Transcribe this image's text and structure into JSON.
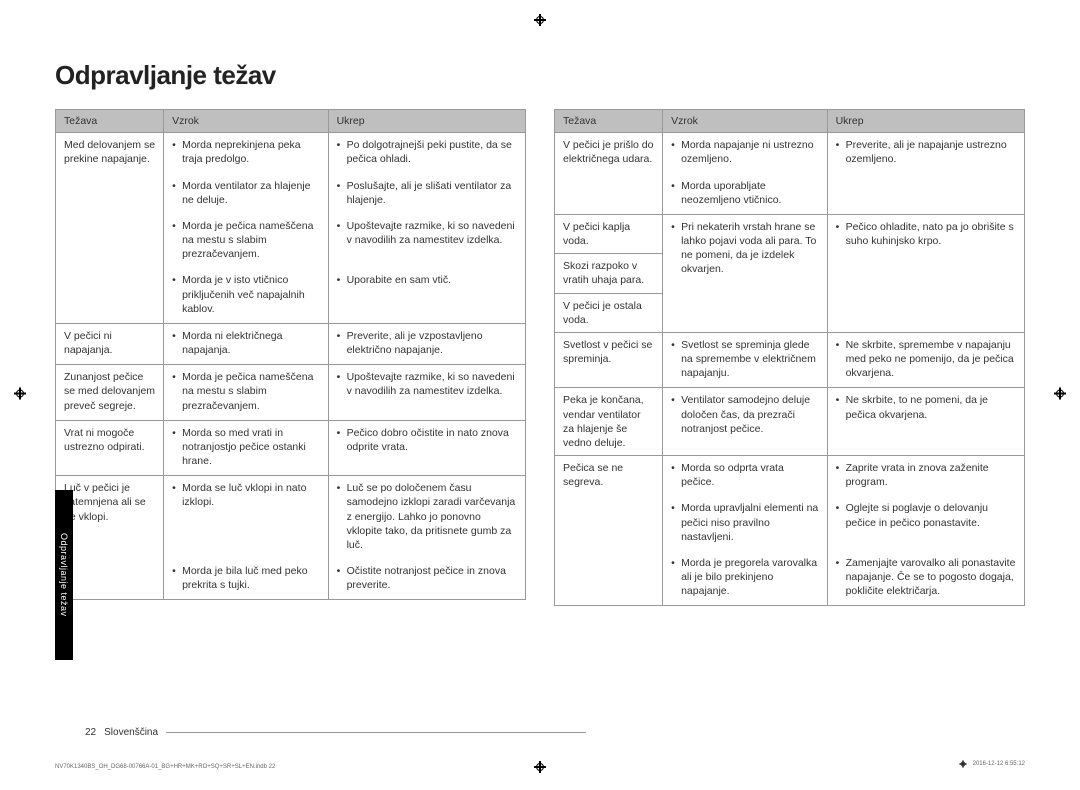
{
  "title": "Odpravljanje težav",
  "sideTab": "Odpravljanje težav",
  "headers": {
    "problem": "Težava",
    "cause": "Vzrok",
    "action": "Ukrep"
  },
  "footer": {
    "page": "22",
    "lang": "Slovenščina"
  },
  "tinyLeft": "NV70K1340BS_OH_DG68-00766A-01_BG+HR+MK+RO+SQ+SR+SL+EN.indb   22",
  "tinyRight": "2016-12-12    6:55:12",
  "left": [
    {
      "problem": "Med delovanjem se prekine napajanje.",
      "rows": [
        {
          "cause": "Morda neprekinjena peka traja predolgo.",
          "action": "Po dolgotrajnejši peki pustite, da se pečica ohladi."
        },
        {
          "cause": "Morda ventilator za hlajenje ne deluje.",
          "action": "Poslušajte, ali je slišati ventilator za hlajenje."
        },
        {
          "cause": "Morda je pečica nameščena na mestu s slabim prezračevanjem.",
          "action": "Upoštevajte razmike, ki so navedeni v navodilih za namestitev izdelka."
        },
        {
          "cause": "Morda je v isto vtičnico priključenih več napajalnih kablov.",
          "action": "Uporabite en sam vtič."
        }
      ]
    },
    {
      "problem": "V pečici ni napajanja.",
      "rows": [
        {
          "cause": "Morda ni električnega napajanja.",
          "action": "Preverite, ali je vzpostavljeno električno napajanje."
        }
      ]
    },
    {
      "problem": "Zunanjost pečice se med delovanjem preveč segreje.",
      "rows": [
        {
          "cause": "Morda je pečica nameščena na mestu s slabim prezračevanjem.",
          "action": "Upoštevajte razmike, ki so navedeni v navodilih za namestitev izdelka."
        }
      ]
    },
    {
      "problem": "Vrat ni mogoče ustrezno odpirati.",
      "rows": [
        {
          "cause": "Morda so med vrati in notranjostjo pečice ostanki hrane.",
          "action": "Pečico dobro očistite in nato znova odprite vrata."
        }
      ]
    },
    {
      "problem": "Luč v pečici je zatemnjena ali se ne vklopi.",
      "rows": [
        {
          "cause": "Morda se luč vklopi in nato izklopi.",
          "action": "Luč se po določenem času samodejno izklopi zaradi varčevanja z energijo. Lahko jo ponovno vklopite tako, da pritisnete gumb za luč."
        },
        {
          "cause": "Morda je bila luč med peko prekrita s tujki.",
          "action": "Očistite notranjost pečice in znova preverite."
        }
      ]
    }
  ],
  "right": [
    {
      "problem": "V pečici je prišlo do električnega udara.",
      "rows": [
        {
          "cause": "Morda napajanje ni ustrezno ozemljeno.",
          "action": "Preverite, ali je napajanje ustrezno ozemljeno."
        },
        {
          "cause": "Morda uporabljate neozemljeno vtičnico.",
          "action": ""
        }
      ],
      "mergeAction": true
    },
    {
      "problem": "V pečici kaplja voda.",
      "mergedWith": 2,
      "rows": [
        {
          "cause": "Pri nekaterih vrstah hrane se lahko pojavi voda ali para. To ne pomeni, da je izdelek okvarjen.",
          "action": "Pečico ohladite, nato pa jo obrišite s suho kuhinjsko krpo."
        }
      ]
    },
    {
      "problem": "Skozi razpoko v vratih uhaja para.",
      "skipBody": true
    },
    {
      "problem": "V pečici je ostala voda.",
      "skipBody": true
    },
    {
      "problem": "Svetlost v pečici se spreminja.",
      "rows": [
        {
          "cause": "Svetlost se spreminja glede na spremembe v električnem napajanju.",
          "action": "Ne skrbite, spremembe v napajanju med peko ne pomenijo, da je pečica okvarjena."
        }
      ]
    },
    {
      "problem": "Peka je končana, vendar ventilator za hlajenje še vedno deluje.",
      "rows": [
        {
          "cause": "Ventilator samodejno deluje določen čas, da prezrači notranjost pečice.",
          "action": "Ne skrbite, to ne pomeni, da je pečica okvarjena."
        }
      ]
    },
    {
      "problem": "Pečica se ne segreva.",
      "rows": [
        {
          "cause": "Morda so odprta vrata pečice.",
          "action": "Zaprite vrata in znova zaženite program."
        },
        {
          "cause": "Morda upravljalni elementi na pečici niso pravilno nastavljeni.",
          "action": "Oglejte si poglavje o delovanju pečice in pečico ponastavite."
        },
        {
          "cause": "Morda je pregorela varovalka ali je bilo prekinjeno napajanje.",
          "action": "Zamenjajte varovalko ali ponastavite napajanje. Če se to pogosto dogaja, pokličite električarja."
        }
      ]
    }
  ]
}
